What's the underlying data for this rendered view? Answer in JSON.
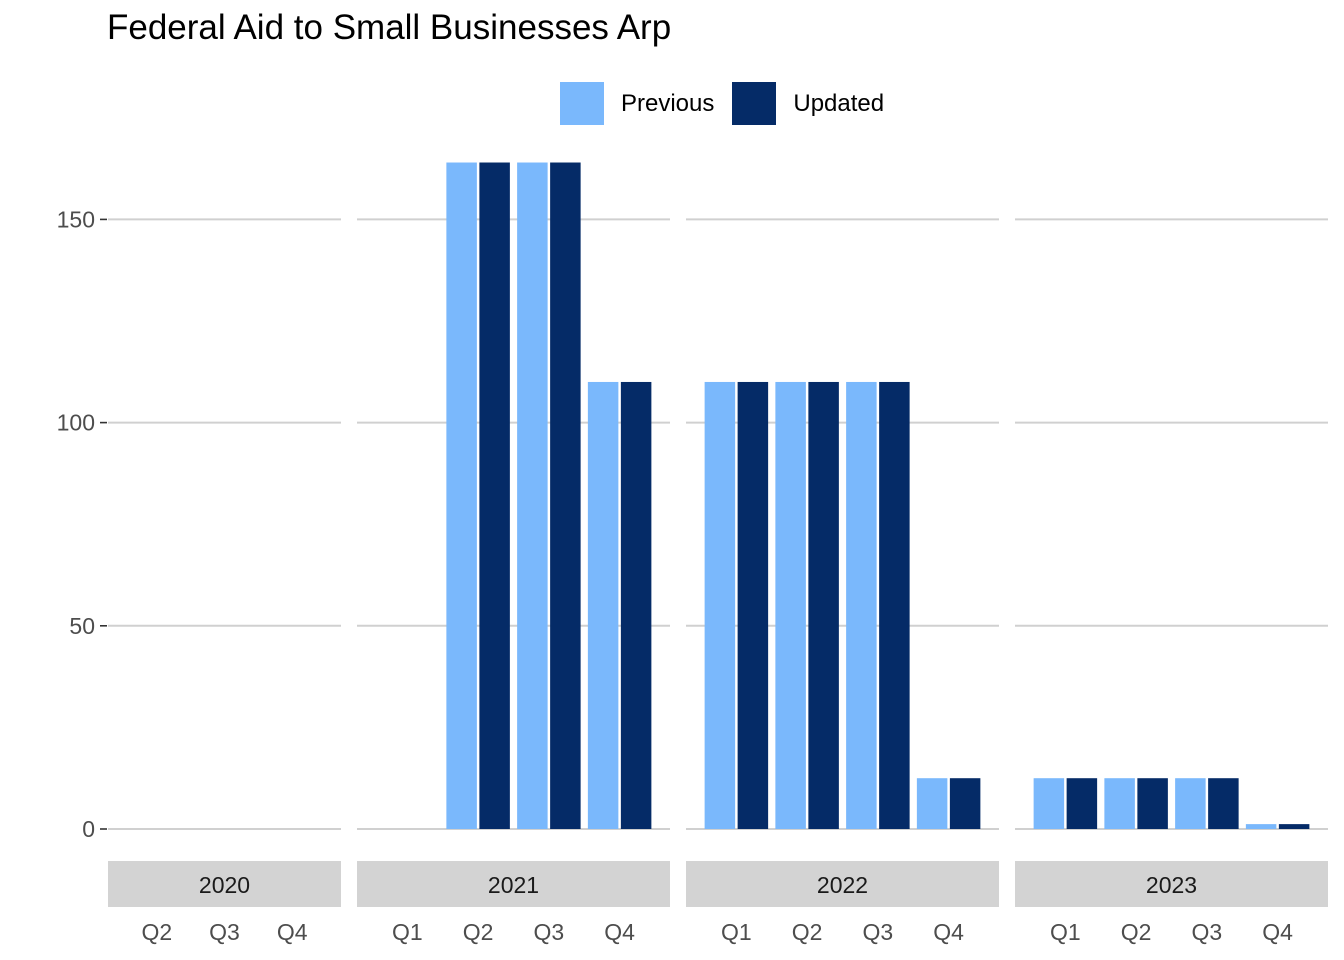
{
  "chart_data": {
    "type": "bar",
    "title": "Federal Aid to Small Businesses Arp",
    "xlabel": "",
    "ylabel": "",
    "ylim": [
      0,
      172
    ],
    "yticks": [
      0,
      50,
      100,
      150
    ],
    "grid": "horizontal",
    "legend_position": "top",
    "facets": [
      {
        "label": "2020",
        "categories": [
          "Q2",
          "Q3",
          "Q4"
        ],
        "series": [
          {
            "name": "Previous",
            "values": [
              0,
              0,
              0
            ]
          },
          {
            "name": "Updated",
            "values": [
              0,
              0,
              0
            ]
          }
        ]
      },
      {
        "label": "2021",
        "categories": [
          "Q1",
          "Q2",
          "Q3",
          "Q4"
        ],
        "series": [
          {
            "name": "Previous",
            "values": [
              0,
              164,
              164,
              110
            ]
          },
          {
            "name": "Updated",
            "values": [
              0,
              164,
              164,
              110
            ]
          }
        ]
      },
      {
        "label": "2022",
        "categories": [
          "Q1",
          "Q2",
          "Q3",
          "Q4"
        ],
        "series": [
          {
            "name": "Previous",
            "values": [
              110,
              110,
              110,
              12.5
            ]
          },
          {
            "name": "Updated",
            "values": [
              110,
              110,
              110,
              12.5
            ]
          }
        ]
      },
      {
        "label": "2023",
        "categories": [
          "Q1",
          "Q2",
          "Q3",
          "Q4"
        ],
        "series": [
          {
            "name": "Previous",
            "values": [
              12.5,
              12.5,
              12.5,
              1.2
            ]
          },
          {
            "name": "Updated",
            "values": [
              12.5,
              12.5,
              12.5,
              1.2
            ]
          }
        ]
      }
    ],
    "colors": {
      "Previous": "#7ab8fc",
      "Updated": "#052b67"
    }
  },
  "legend": {
    "items": [
      {
        "label": "Previous",
        "color": "#7ab8fc"
      },
      {
        "label": "Updated",
        "color": "#052b67"
      }
    ]
  }
}
